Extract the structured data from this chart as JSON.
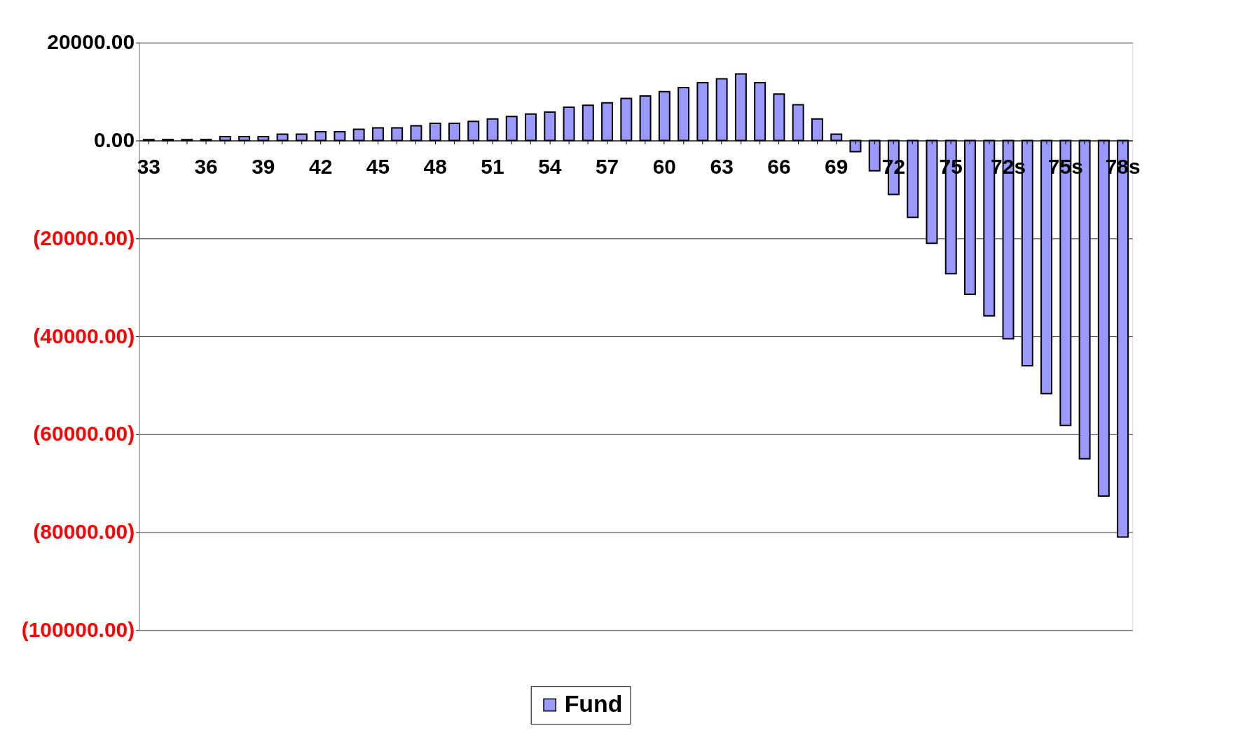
{
  "chart_data": {
    "type": "bar",
    "categories": [
      "33",
      null,
      null,
      "36",
      null,
      null,
      "39",
      null,
      null,
      "42",
      null,
      null,
      "45",
      null,
      null,
      "48",
      null,
      null,
      "51",
      null,
      null,
      "54",
      null,
      null,
      "57",
      null,
      null,
      "60",
      null,
      null,
      "63",
      null,
      null,
      "66",
      null,
      null,
      "69",
      null,
      null,
      "72",
      null,
      null,
      "75",
      null,
      null,
      "72s",
      null,
      null,
      "75s",
      null,
      null,
      "78s"
    ],
    "series": [
      {
        "name": "Fund",
        "color": "#9999ff",
        "values": [
          200,
          200,
          200,
          200,
          800,
          800,
          800,
          1300,
          1300,
          1800,
          1800,
          2300,
          2600,
          2600,
          3000,
          3500,
          3500,
          3900,
          4400,
          4900,
          5400,
          5800,
          6800,
          7200,
          7700,
          8600,
          9100,
          10000,
          10800,
          11800,
          12600,
          13600,
          11800,
          9500,
          7300,
          4400,
          1300,
          -2300,
          -6200,
          -11000,
          -15700,
          -21000,
          -27200,
          -31400,
          -35800,
          -40500,
          -46000,
          -51700,
          -58200,
          -65000,
          -72600,
          -81000
        ]
      }
    ],
    "ylim": [
      -100000,
      20000
    ],
    "yticks": [
      {
        "value": 20000,
        "label": "20000.00"
      },
      {
        "value": 0,
        "label": "0.00"
      },
      {
        "value": -20000,
        "label": "(20000.00)"
      },
      {
        "value": -40000,
        "label": "(40000.00)"
      },
      {
        "value": -60000,
        "label": "(60000.00)"
      },
      {
        "value": -80000,
        "label": "(80000.00)"
      },
      {
        "value": -100000,
        "label": "(100000.00)"
      }
    ],
    "grid": "y",
    "legend": "bottom"
  }
}
